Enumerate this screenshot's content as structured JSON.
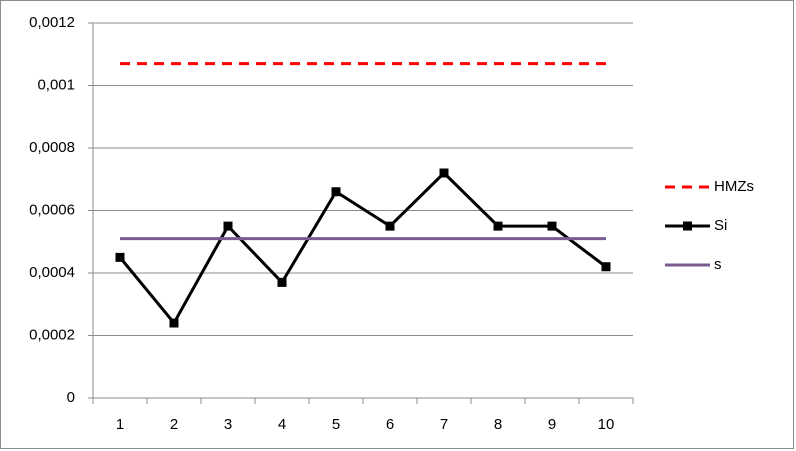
{
  "chart_data": {
    "type": "line",
    "categories": [
      "1",
      "2",
      "3",
      "4",
      "5",
      "6",
      "7",
      "8",
      "9",
      "10"
    ],
    "series": [
      {
        "name": "HMZs",
        "color": "#ff0000",
        "dashed": true,
        "marker": "none",
        "values": [
          0.00107,
          0.00107,
          0.00107,
          0.00107,
          0.00107,
          0.00107,
          0.00107,
          0.00107,
          0.00107,
          0.00107
        ]
      },
      {
        "name": "Si",
        "color": "#000000",
        "dashed": false,
        "marker": "square",
        "values": [
          0.00045,
          0.00024,
          0.00055,
          0.00037,
          0.00066,
          0.00055,
          0.00072,
          0.00055,
          0.00055,
          0.00042
        ]
      },
      {
        "name": "s",
        "color": "#7a5c91",
        "dashed": false,
        "marker": "none",
        "values": [
          0.00051,
          0.00051,
          0.00051,
          0.00051,
          0.00051,
          0.00051,
          0.00051,
          0.00051,
          0.00051,
          0.00051
        ]
      }
    ],
    "ylim": [
      0,
      0.0012
    ],
    "yticks": [
      0,
      {
        "value": 0.0002,
        "label": "0,0002"
      },
      {
        "value": 0.0004,
        "label": "0,0004"
      },
      {
        "value": 0.0006,
        "label": "0,0006"
      },
      {
        "value": 0.0008,
        "label": "0,0008"
      },
      {
        "value": 0.001,
        "label": "0,001"
      },
      {
        "value": 0.0012,
        "label": "0,0012"
      }
    ],
    "grid": true,
    "legend": "right"
  }
}
